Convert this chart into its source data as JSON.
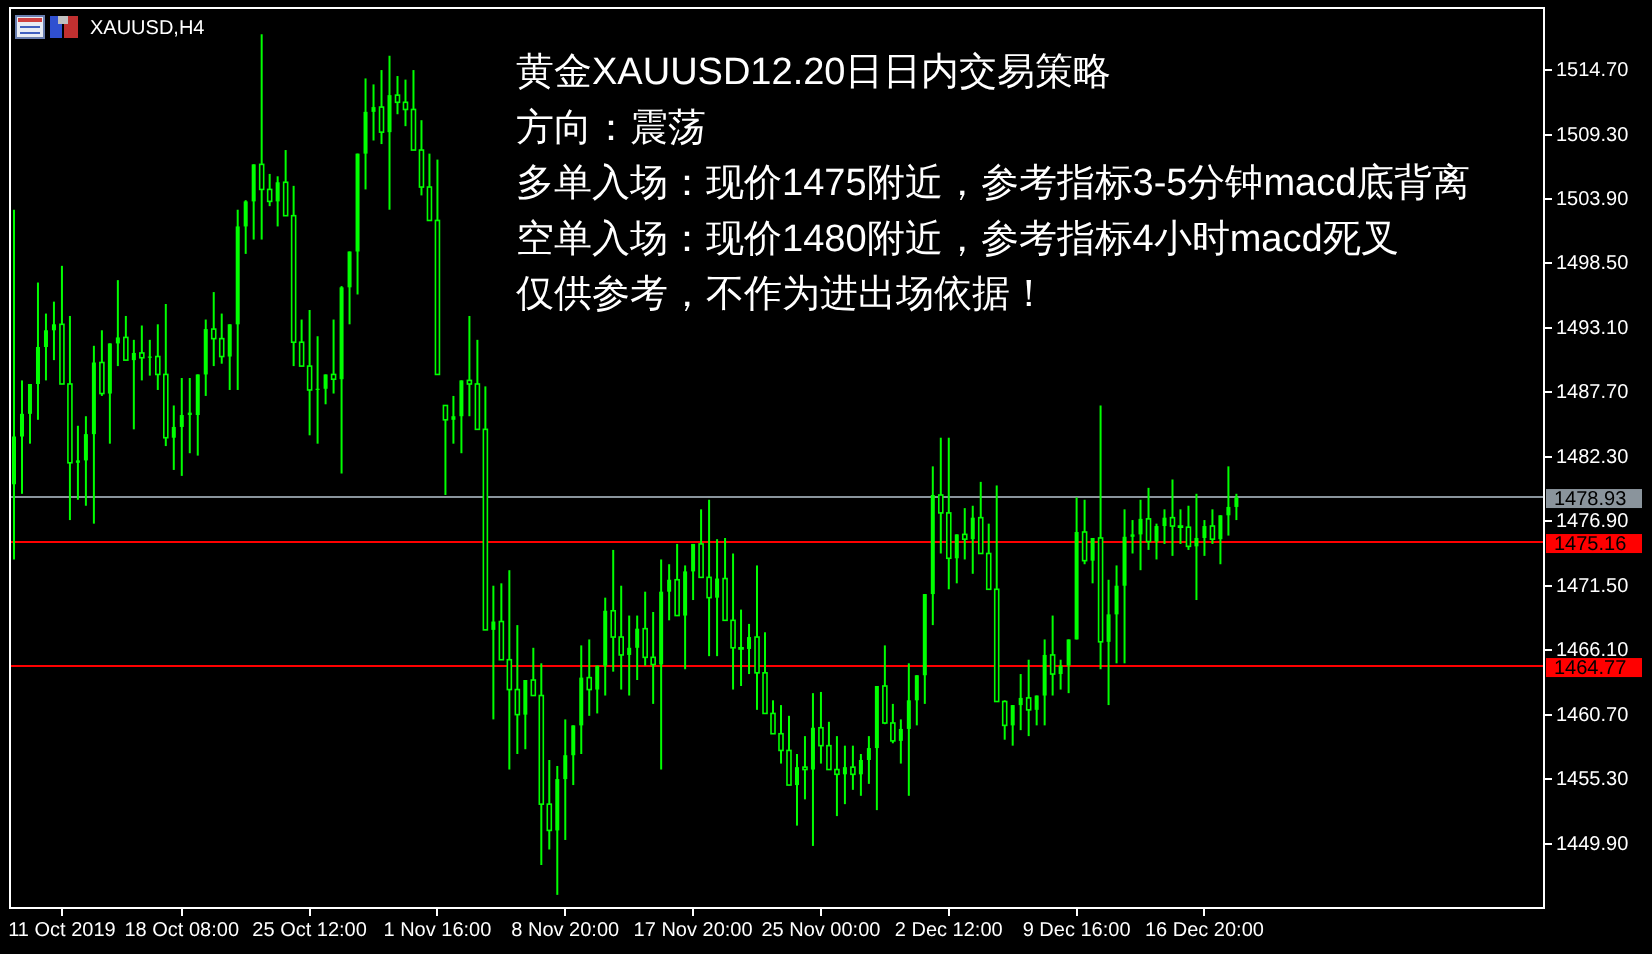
{
  "chart_data": {
    "type": "candlestick",
    "title": "XAUUSD,H4",
    "color": "#00ff00",
    "annotations": [
      "黄金XAUUSD12.20日日内交易策略",
      "方向：震荡",
      "多单入场：现价1475附近，参考指标3-5分钟macd底背离",
      "空单入场：现价1480附近，参考指标4小时macd死叉",
      "仅供参考，不作为进出场依据！"
    ],
    "ylim": [
      1444.5,
      1519.9
    ],
    "yticks": [
      {
        "value": 1449.9,
        "label": "1449.90"
      },
      {
        "value": 1455.3,
        "label": "1455.30"
      },
      {
        "value": 1460.7,
        "label": "1460.70"
      },
      {
        "value": 1466.1,
        "label": "1466.10"
      },
      {
        "value": 1471.5,
        "label": "1471.50"
      },
      {
        "value": 1476.9,
        "label": "1476.90"
      },
      {
        "value": 1482.3,
        "label": "1482.30"
      },
      {
        "value": 1487.7,
        "label": "1487.70"
      },
      {
        "value": 1493.1,
        "label": "1493.10"
      },
      {
        "value": 1498.5,
        "label": "1498.50"
      },
      {
        "value": 1503.9,
        "label": "1503.90"
      },
      {
        "value": 1509.3,
        "label": "1509.30"
      },
      {
        "value": 1514.7,
        "label": "1514.70"
      }
    ],
    "ref_lines": [
      {
        "axis": "y",
        "value": 1478.93,
        "label": "1478.93",
        "color": "#8a949c"
      },
      {
        "axis": "y",
        "value": 1475.16,
        "label": "1475.16",
        "color": "#ff0000"
      },
      {
        "axis": "y",
        "value": 1464.77,
        "label": "1464.77",
        "color": "#ff0000"
      }
    ],
    "categories": [
      null,
      null,
      null,
      null,
      null,
      null,
      "11 Oct 2019",
      null,
      null,
      null,
      null,
      null,
      null,
      null,
      null,
      null,
      null,
      null,
      null,
      null,
      null,
      "18 Oct 08:00",
      null,
      null,
      null,
      null,
      null,
      null,
      null,
      null,
      null,
      null,
      null,
      null,
      null,
      null,
      null,
      "25 Oct 12:00",
      null,
      null,
      null,
      null,
      null,
      null,
      null,
      null,
      null,
      null,
      null,
      null,
      null,
      null,
      null,
      "1 Nov 16:00",
      null,
      null,
      null,
      null,
      null,
      null,
      null,
      null,
      null,
      null,
      null,
      null,
      null,
      null,
      null,
      "8 Nov 20:00",
      null,
      null,
      null,
      null,
      null,
      null,
      null,
      null,
      null,
      null,
      null,
      null,
      null,
      null,
      null,
      "17 Nov 20:00",
      null,
      null,
      null,
      null,
      null,
      null,
      null,
      null,
      null,
      null,
      null,
      null,
      null,
      null,
      null,
      "25 Nov 00:00",
      null,
      null,
      null,
      null,
      null,
      null,
      null,
      null,
      null,
      null,
      null,
      null,
      null,
      null,
      null,
      "2 Dec 12:00",
      null,
      null,
      null,
      null,
      null,
      null,
      null,
      null,
      null,
      null,
      null,
      null,
      null,
      null,
      null,
      "9 Dec 16:00",
      null,
      null,
      null,
      null,
      null,
      null,
      null,
      null,
      null,
      null,
      null,
      null,
      null,
      null,
      null,
      "16 Dec 20:00",
      null,
      null,
      null,
      null,
      null,
      null,
      null,
      null,
      null,
      null,
      null,
      null,
      null,
      null,
      null,
      null,
      null,
      null,
      null,
      null,
      null,
      null,
      null,
      null,
      null,
      null,
      null,
      null,
      null,
      null,
      null,
      null,
      null,
      null,
      null,
      null,
      null,
      null,
      null,
      null,
      null,
      null
    ],
    "ohlc": [
      [
        1480.0,
        1503.0,
        1473.7,
        1484.0
      ],
      [
        1484.0,
        1488.7,
        1479.2,
        1485.9
      ],
      [
        1485.9,
        1488.4,
        1483.4,
        1488.4
      ],
      [
        1488.4,
        1496.9,
        1485.4,
        1491.5
      ],
      [
        1491.5,
        1494.3,
        1488.7,
        1492.9
      ],
      [
        1492.9,
        1495.3,
        1490.4,
        1493.4
      ],
      [
        1493.4,
        1498.3,
        1488.4,
        1488.4
      ],
      [
        1488.4,
        1494.1,
        1477.0,
        1481.8
      ],
      [
        1481.8,
        1484.9,
        1478.7,
        1482.0
      ],
      [
        1482.0,
        1485.7,
        1478.2,
        1484.2
      ],
      [
        1484.2,
        1491.6,
        1476.7,
        1490.2
      ],
      [
        1490.2,
        1492.9,
        1487.4,
        1487.6
      ],
      [
        1487.6,
        1491.8,
        1483.4,
        1491.8
      ],
      [
        1491.8,
        1497.1,
        1489.9,
        1492.3
      ],
      [
        1492.3,
        1494.1,
        1490.4,
        1490.4
      ],
      [
        1490.4,
        1492.1,
        1484.6,
        1491.0
      ],
      [
        1491.0,
        1493.3,
        1488.7,
        1490.6
      ],
      [
        1490.6,
        1492.1,
        1489.1,
        1490.7
      ],
      [
        1490.7,
        1493.4,
        1487.9,
        1489.2
      ],
      [
        1489.2,
        1495.1,
        1483.2,
        1483.9
      ],
      [
        1483.9,
        1486.6,
        1481.2,
        1484.8
      ],
      [
        1484.8,
        1488.9,
        1480.7,
        1485.8
      ],
      [
        1485.8,
        1488.9,
        1482.6,
        1486.0
      ],
      [
        1485.8,
        1489.2,
        1482.4,
        1489.2
      ],
      [
        1489.2,
        1493.8,
        1487.4,
        1493.0
      ],
      [
        1493.0,
        1496.1,
        1489.9,
        1492.2
      ],
      [
        1492.2,
        1494.3,
        1490.1,
        1490.7
      ],
      [
        1490.7,
        1493.4,
        1487.9,
        1493.4
      ],
      [
        1493.4,
        1503.0,
        1487.9,
        1501.6
      ],
      [
        1501.6,
        1503.8,
        1499.3,
        1503.7
      ],
      [
        1503.7,
        1506.8,
        1500.5,
        1506.8
      ],
      [
        1506.8,
        1517.7,
        1500.5,
        1504.7
      ],
      [
        1504.7,
        1506.0,
        1503.3,
        1503.7
      ],
      [
        1503.7,
        1505.8,
        1501.6,
        1505.3
      ],
      [
        1505.3,
        1508.0,
        1502.5,
        1502.5
      ],
      [
        1502.5,
        1505.0,
        1489.9,
        1491.9
      ],
      [
        1491.9,
        1493.8,
        1489.9,
        1489.9
      ],
      [
        1489.9,
        1494.6,
        1484.1,
        1487.9
      ],
      [
        1487.9,
        1492.4,
        1483.4,
        1488.0
      ],
      [
        1488.0,
        1489.2,
        1486.7,
        1489.2
      ],
      [
        1489.2,
        1493.8,
        1487.6,
        1488.8
      ],
      [
        1488.8,
        1496.6,
        1480.9,
        1496.5
      ],
      [
        1496.5,
        1499.5,
        1493.4,
        1499.5
      ],
      [
        1499.5,
        1507.7,
        1495.9,
        1507.7
      ],
      [
        1507.7,
        1514.0,
        1504.7,
        1511.2
      ],
      [
        1511.2,
        1513.5,
        1508.8,
        1511.6
      ],
      [
        1511.6,
        1514.7,
        1508.5,
        1509.5
      ],
      [
        1509.5,
        1515.9,
        1503.0,
        1512.6
      ],
      [
        1512.6,
        1514.2,
        1511.0,
        1512.0
      ],
      [
        1512.0,
        1513.9,
        1510.0,
        1511.4
      ],
      [
        1511.4,
        1514.7,
        1508.0,
        1508.0
      ],
      [
        1508.0,
        1510.5,
        1504.2,
        1504.9
      ],
      [
        1504.9,
        1507.7,
        1502.1,
        1502.1
      ],
      [
        1502.1,
        1507.2,
        1489.2,
        1489.2
      ],
      [
        1486.6,
        1486.6,
        1479.1,
        1485.4
      ],
      [
        1485.4,
        1487.4,
        1483.4,
        1485.7
      ],
      [
        1485.7,
        1488.7,
        1482.6,
        1488.7
      ],
      [
        1488.7,
        1494.1,
        1485.7,
        1488.4
      ],
      [
        1488.4,
        1492.1,
        1484.6,
        1484.6
      ],
      [
        1484.6,
        1488.2,
        1467.8,
        1467.8
      ],
      [
        1467.8,
        1471.5,
        1460.3,
        1468.5
      ],
      [
        1468.5,
        1471.7,
        1465.3,
        1465.3
      ],
      [
        1465.3,
        1472.8,
        1456.1,
        1462.8
      ],
      [
        1462.8,
        1468.2,
        1457.4,
        1460.7
      ],
      [
        1460.7,
        1463.6,
        1457.8,
        1463.6
      ],
      [
        1463.6,
        1466.3,
        1462.3,
        1462.3
      ],
      [
        1462.3,
        1465.0,
        1448.1,
        1453.2
      ],
      [
        1453.2,
        1456.9,
        1449.4,
        1451.0
      ],
      [
        1451.0,
        1456.4,
        1445.6,
        1455.3
      ],
      [
        1455.3,
        1460.3,
        1450.2,
        1457.3
      ],
      [
        1457.3,
        1459.8,
        1454.8,
        1459.8
      ],
      [
        1459.8,
        1466.5,
        1457.4,
        1463.8
      ],
      [
        1463.8,
        1467.0,
        1460.6,
        1462.8
      ],
      [
        1462.8,
        1464.8,
        1460.8,
        1464.8
      ],
      [
        1464.8,
        1470.5,
        1462.3,
        1469.4
      ],
      [
        1469.4,
        1474.5,
        1464.3,
        1467.2
      ],
      [
        1467.2,
        1471.5,
        1462.8,
        1465.7
      ],
      [
        1465.7,
        1469.0,
        1462.3,
        1466.3
      ],
      [
        1466.3,
        1469.0,
        1463.6,
        1467.9
      ],
      [
        1467.9,
        1471.0,
        1464.8,
        1465.5
      ],
      [
        1465.5,
        1469.3,
        1461.6,
        1464.9
      ],
      [
        1464.9,
        1473.7,
        1456.1,
        1471.0
      ],
      [
        1471.0,
        1473.3,
        1468.6,
        1472.0
      ],
      [
        1472.0,
        1475.0,
        1469.0,
        1469.0
      ],
      [
        1469.0,
        1473.2,
        1464.5,
        1472.7
      ],
      [
        1472.7,
        1475.0,
        1470.3,
        1475.0
      ],
      [
        1475.0,
        1477.9,
        1472.2,
        1472.2
      ],
      [
        1472.2,
        1478.7,
        1465.6,
        1470.5
      ],
      [
        1470.5,
        1475.4,
        1465.6,
        1472.1
      ],
      [
        1472.1,
        1475.5,
        1468.6,
        1468.6
      ],
      [
        1468.6,
        1474.2,
        1462.8,
        1466.3
      ],
      [
        1466.3,
        1469.5,
        1463.1,
        1466.2
      ],
      [
        1466.2,
        1468.3,
        1464.1,
        1467.2
      ],
      [
        1467.2,
        1473.2,
        1461.1,
        1464.2
      ],
      [
        1464.2,
        1467.6,
        1460.8,
        1460.8
      ],
      [
        1460.8,
        1461.9,
        1459.1,
        1459.1
      ],
      [
        1459.1,
        1461.5,
        1456.6,
        1457.7
      ],
      [
        1457.7,
        1460.6,
        1454.8,
        1454.8
      ],
      [
        1454.8,
        1457.4,
        1451.4,
        1456.3
      ],
      [
        1456.3,
        1458.9,
        1453.6,
        1456.1
      ],
      [
        1456.1,
        1462.5,
        1449.7,
        1459.6
      ],
      [
        1459.6,
        1462.6,
        1456.6,
        1458.1
      ],
      [
        1458.1,
        1460.1,
        1456.1,
        1456.1
      ],
      [
        1456.1,
        1458.9,
        1452.2,
        1455.7
      ],
      [
        1455.7,
        1458.1,
        1453.2,
        1456.3
      ],
      [
        1456.3,
        1458.1,
        1454.4,
        1455.7
      ],
      [
        1455.7,
        1457.4,
        1453.9,
        1456.9
      ],
      [
        1456.9,
        1458.9,
        1454.9,
        1457.9
      ],
      [
        1457.9,
        1463.1,
        1452.7,
        1463.1
      ],
      [
        1463.1,
        1466.5,
        1459.9,
        1460.0
      ],
      [
        1460.0,
        1461.6,
        1458.3,
        1458.5
      ],
      [
        1458.5,
        1460.3,
        1456.6,
        1459.5
      ],
      [
        1459.5,
        1465.0,
        1453.9,
        1461.9
      ],
      [
        1461.9,
        1464.0,
        1459.8,
        1464.0
      ],
      [
        1464.0,
        1470.8,
        1461.6,
        1470.8
      ],
      [
        1470.8,
        1481.5,
        1468.2,
        1479.1
      ],
      [
        1479.1,
        1483.9,
        1474.2,
        1477.6
      ],
      [
        1477.6,
        1483.9,
        1471.2,
        1473.8
      ],
      [
        1473.8,
        1475.8,
        1471.7,
        1475.8
      ],
      [
        1475.8,
        1478.0,
        1473.7,
        1475.4
      ],
      [
        1475.4,
        1478.2,
        1472.5,
        1477.2
      ],
      [
        1477.2,
        1480.2,
        1474.2,
        1474.2
      ],
      [
        1474.2,
        1476.7,
        1471.2,
        1471.2
      ],
      [
        1471.2,
        1479.9,
        1461.8,
        1461.8
      ],
      [
        1461.8,
        1461.9,
        1458.6,
        1459.8
      ],
      [
        1459.8,
        1461.5,
        1458.1,
        1461.5
      ],
      [
        1461.5,
        1464.1,
        1459.4,
        1462.1
      ],
      [
        1462.1,
        1465.3,
        1458.9,
        1461.1
      ],
      [
        1461.1,
        1462.3,
        1459.8,
        1462.3
      ],
      [
        1462.3,
        1467.0,
        1459.8,
        1465.7
      ],
      [
        1465.7,
        1469.0,
        1462.3,
        1464.1
      ],
      [
        1464.1,
        1465.3,
        1462.8,
        1464.8
      ],
      [
        1464.8,
        1467.0,
        1462.5,
        1467.0
      ],
      [
        1467.0,
        1478.9,
        1467.0,
        1476.0
      ],
      [
        1476.0,
        1478.7,
        1473.3,
        1473.6
      ],
      [
        1473.6,
        1475.5,
        1471.7,
        1475.5
      ],
      [
        1475.5,
        1486.6,
        1464.5,
        1466.8
      ],
      [
        1466.8,
        1472.0,
        1461.5,
        1469.1
      ],
      [
        1469.1,
        1473.2,
        1465.0,
        1471.5
      ],
      [
        1471.5,
        1477.9,
        1465.0,
        1475.6
      ],
      [
        1475.6,
        1477.0,
        1474.2,
        1475.8
      ],
      [
        1475.8,
        1478.7,
        1472.8,
        1477.1
      ],
      [
        1477.1,
        1479.7,
        1474.5,
        1475.2
      ],
      [
        1475.2,
        1476.7,
        1473.7,
        1476.5
      ],
      [
        1476.5,
        1477.9,
        1475.0,
        1477.2
      ],
      [
        1477.2,
        1480.4,
        1474.0,
        1476.5
      ],
      [
        1476.5,
        1477.9,
        1475.0,
        1476.4
      ],
      [
        1476.4,
        1478.2,
        1474.5,
        1474.8
      ],
      [
        1474.8,
        1479.2,
        1470.3,
        1475.5
      ],
      [
        1475.5,
        1477.0,
        1474.0,
        1476.5
      ],
      [
        1476.5,
        1477.9,
        1475.0,
        1475.4
      ],
      [
        1475.4,
        1477.4,
        1473.3,
        1477.4
      ],
      [
        1477.4,
        1481.5,
        1475.7,
        1478.1
      ],
      [
        1478.1,
        1479.2,
        1477.0,
        1478.9
      ],
      null,
      null,
      null,
      null,
      null,
      null,
      null,
      null,
      null,
      null,
      null,
      null,
      null,
      null,
      null,
      null,
      null,
      null,
      null,
      null,
      null,
      null,
      null,
      null,
      null,
      null,
      null,
      null,
      null,
      null,
      null,
      null,
      null,
      null,
      null,
      null,
      null,
      null
    ]
  }
}
